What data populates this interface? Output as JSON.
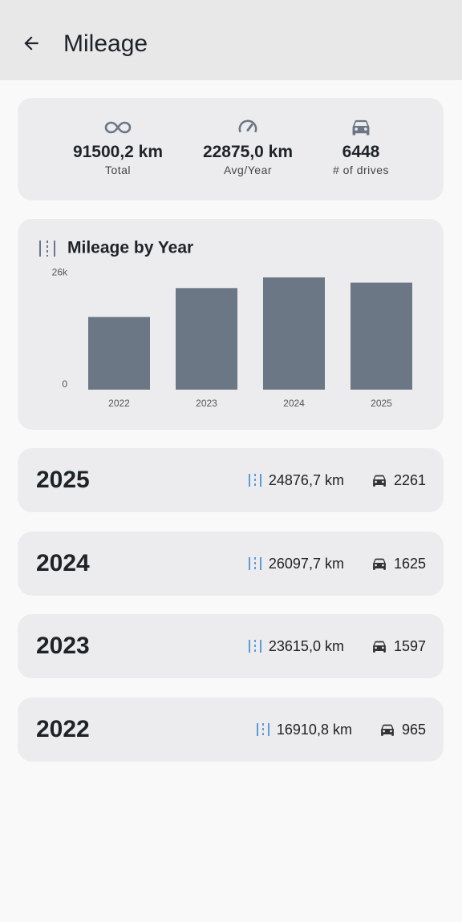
{
  "header": {
    "title": "Mileage"
  },
  "summary": [
    {
      "value": "91500,2 km",
      "label": "Total"
    },
    {
      "value": "22875,0 km",
      "label": "Avg/Year"
    },
    {
      "value": "6448",
      "label": "# of drives"
    }
  ],
  "chart": {
    "type": "bar",
    "title": "Mileage by Year",
    "categories": [
      "2022",
      "2023",
      "2024",
      "2025"
    ],
    "values": [
      16910.8,
      23615.0,
      26097.7,
      24876.7
    ],
    "color": "#6b7785",
    "ylim": [
      0,
      26100
    ],
    "yticks": [
      0,
      {
        "value": 26000,
        "label": "26k"
      }
    ]
  },
  "years": [
    {
      "year": "2025",
      "distance": "24876,7 km",
      "drives": "2261"
    },
    {
      "year": "2024",
      "distance": "26097,7 km",
      "drives": "1625"
    },
    {
      "year": "2023",
      "distance": "23615,0 km",
      "drives": "1597"
    },
    {
      "year": "2022",
      "distance": "16910,8 km",
      "drives": "965"
    }
  ]
}
